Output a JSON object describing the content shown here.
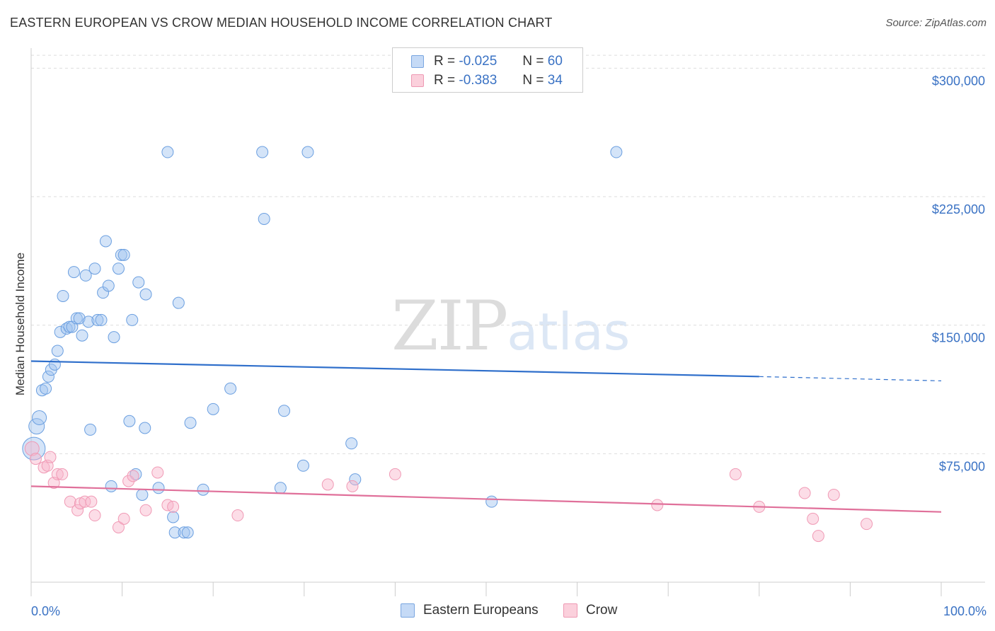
{
  "title": "EASTERN EUROPEAN VS CROW MEDIAN HOUSEHOLD INCOME CORRELATION CHART",
  "source": "Source: ZipAtlas.com",
  "watermark": {
    "zip": "ZIP",
    "atlas": "atlas"
  },
  "legend": {
    "rows": [
      {
        "r_label": "R =",
        "r_value": "-0.025",
        "n_label": "N =",
        "n_value": "60"
      },
      {
        "r_label": "R =",
        "r_value": "-0.383",
        "n_label": "N =",
        "n_value": "34"
      }
    ]
  },
  "bottom_legend": {
    "blue": "Eastern Europeans",
    "pink": "Crow"
  },
  "colors": {
    "blue": "#6b9fe0",
    "blue_line": "#2f6fcb",
    "pink": "#f09ab5",
    "pink_line": "#e0709a"
  },
  "chart_data": {
    "type": "scatter",
    "title": "EASTERN EUROPEAN VS CROW MEDIAN HOUSEHOLD INCOME CORRELATION CHART",
    "xlabel": "",
    "ylabel": "Median Household Income",
    "xlim": [
      0,
      100
    ],
    "ylim": [
      0,
      315000
    ],
    "x_tick_labels": [
      "0.0%",
      "100.0%"
    ],
    "y_ticks": [
      75000,
      150000,
      225000,
      300000
    ],
    "y_tick_labels": [
      "$75,000",
      "$150,000",
      "$225,000",
      "$300,000"
    ],
    "series": [
      {
        "name": "Eastern Europeans",
        "color": "blue",
        "trend": {
          "x0": 0,
          "y0": 129000,
          "x1": 80,
          "y1": 120000,
          "dash_to": 100,
          "dash_y": 117500
        },
        "points": [
          [
            0.3,
            78000,
            16
          ],
          [
            0.6,
            91000,
            11
          ],
          [
            0.9,
            96000,
            10
          ],
          [
            1.2,
            112000,
            8
          ],
          [
            1.6,
            113000,
            8
          ],
          [
            1.9,
            120000,
            8
          ],
          [
            2.2,
            124000,
            8
          ],
          [
            2.6,
            127000,
            8
          ],
          [
            2.9,
            135000,
            8
          ],
          [
            3.2,
            146000,
            8
          ],
          [
            3.5,
            167000,
            8
          ],
          [
            3.9,
            148000,
            8
          ],
          [
            4.2,
            149000,
            8
          ],
          [
            4.5,
            149000,
            8
          ],
          [
            4.7,
            181000,
            8
          ],
          [
            5.0,
            154000,
            8
          ],
          [
            5.3,
            154000,
            8
          ],
          [
            5.6,
            144000,
            8
          ],
          [
            6.0,
            179000,
            8
          ],
          [
            6.3,
            152000,
            8
          ],
          [
            6.5,
            89000,
            8
          ],
          [
            7.0,
            183000,
            8
          ],
          [
            7.3,
            153000,
            8
          ],
          [
            7.7,
            153000,
            8
          ],
          [
            7.9,
            169000,
            8
          ],
          [
            8.2,
            199000,
            8
          ],
          [
            8.5,
            173000,
            8
          ],
          [
            8.8,
            56000,
            8
          ],
          [
            9.1,
            143000,
            8
          ],
          [
            9.6,
            183000,
            8
          ],
          [
            9.9,
            191000,
            8
          ],
          [
            10.2,
            191000,
            8
          ],
          [
            10.8,
            94000,
            8
          ],
          [
            11.1,
            153000,
            8
          ],
          [
            11.5,
            63000,
            8
          ],
          [
            11.8,
            175000,
            8
          ],
          [
            12.2,
            51000,
            8
          ],
          [
            12.5,
            90000,
            8
          ],
          [
            12.6,
            168000,
            8
          ],
          [
            14.0,
            55000,
            8
          ],
          [
            15.0,
            251000,
            8
          ],
          [
            15.6,
            38000,
            8
          ],
          [
            15.8,
            29000,
            8
          ],
          [
            16.2,
            163000,
            8
          ],
          [
            16.8,
            29000,
            8
          ],
          [
            17.2,
            29000,
            8
          ],
          [
            17.5,
            93000,
            8
          ],
          [
            18.9,
            54000,
            8
          ],
          [
            20.0,
            101000,
            8
          ],
          [
            21.9,
            113000,
            8
          ],
          [
            25.4,
            251000,
            8
          ],
          [
            25.6,
            212000,
            8
          ],
          [
            27.4,
            55000,
            8
          ],
          [
            27.8,
            100000,
            8
          ],
          [
            29.9,
            68000,
            8
          ],
          [
            30.4,
            251000,
            8
          ],
          [
            35.2,
            81000,
            8
          ],
          [
            35.6,
            60000,
            8
          ],
          [
            50.6,
            47000,
            8
          ],
          [
            64.3,
            251000,
            8
          ]
        ]
      },
      {
        "name": "Crow",
        "color": "pink",
        "trend": {
          "x0": 0,
          "y0": 56000,
          "x1": 100,
          "y1": 41000
        },
        "points": [
          [
            0.1,
            78000,
            10
          ],
          [
            0.5,
            72000,
            8
          ],
          [
            1.4,
            67000,
            8
          ],
          [
            1.8,
            68000,
            8
          ],
          [
            2.1,
            73000,
            8
          ],
          [
            2.5,
            58000,
            8
          ],
          [
            2.9,
            63000,
            8
          ],
          [
            3.4,
            63000,
            8
          ],
          [
            4.3,
            47000,
            8
          ],
          [
            5.1,
            42000,
            8
          ],
          [
            5.4,
            46000,
            8
          ],
          [
            5.9,
            47000,
            8
          ],
          [
            6.6,
            47000,
            8
          ],
          [
            7.0,
            39000,
            8
          ],
          [
            9.6,
            32000,
            8
          ],
          [
            10.2,
            37000,
            8
          ],
          [
            10.7,
            59000,
            8
          ],
          [
            11.2,
            62000,
            8
          ],
          [
            12.6,
            42000,
            8
          ],
          [
            13.9,
            64000,
            8
          ],
          [
            15.0,
            45000,
            8
          ],
          [
            15.6,
            44000,
            8
          ],
          [
            22.7,
            39000,
            8
          ],
          [
            32.6,
            57000,
            8
          ],
          [
            35.3,
            56000,
            8
          ],
          [
            40.0,
            63000,
            8
          ],
          [
            68.8,
            45000,
            8
          ],
          [
            77.4,
            63000,
            8
          ],
          [
            80.0,
            44000,
            8
          ],
          [
            85.0,
            52000,
            8
          ],
          [
            85.9,
            37000,
            8
          ],
          [
            86.5,
            27000,
            8
          ],
          [
            88.2,
            51000,
            8
          ],
          [
            91.8,
            34000,
            8
          ]
        ]
      }
    ]
  }
}
